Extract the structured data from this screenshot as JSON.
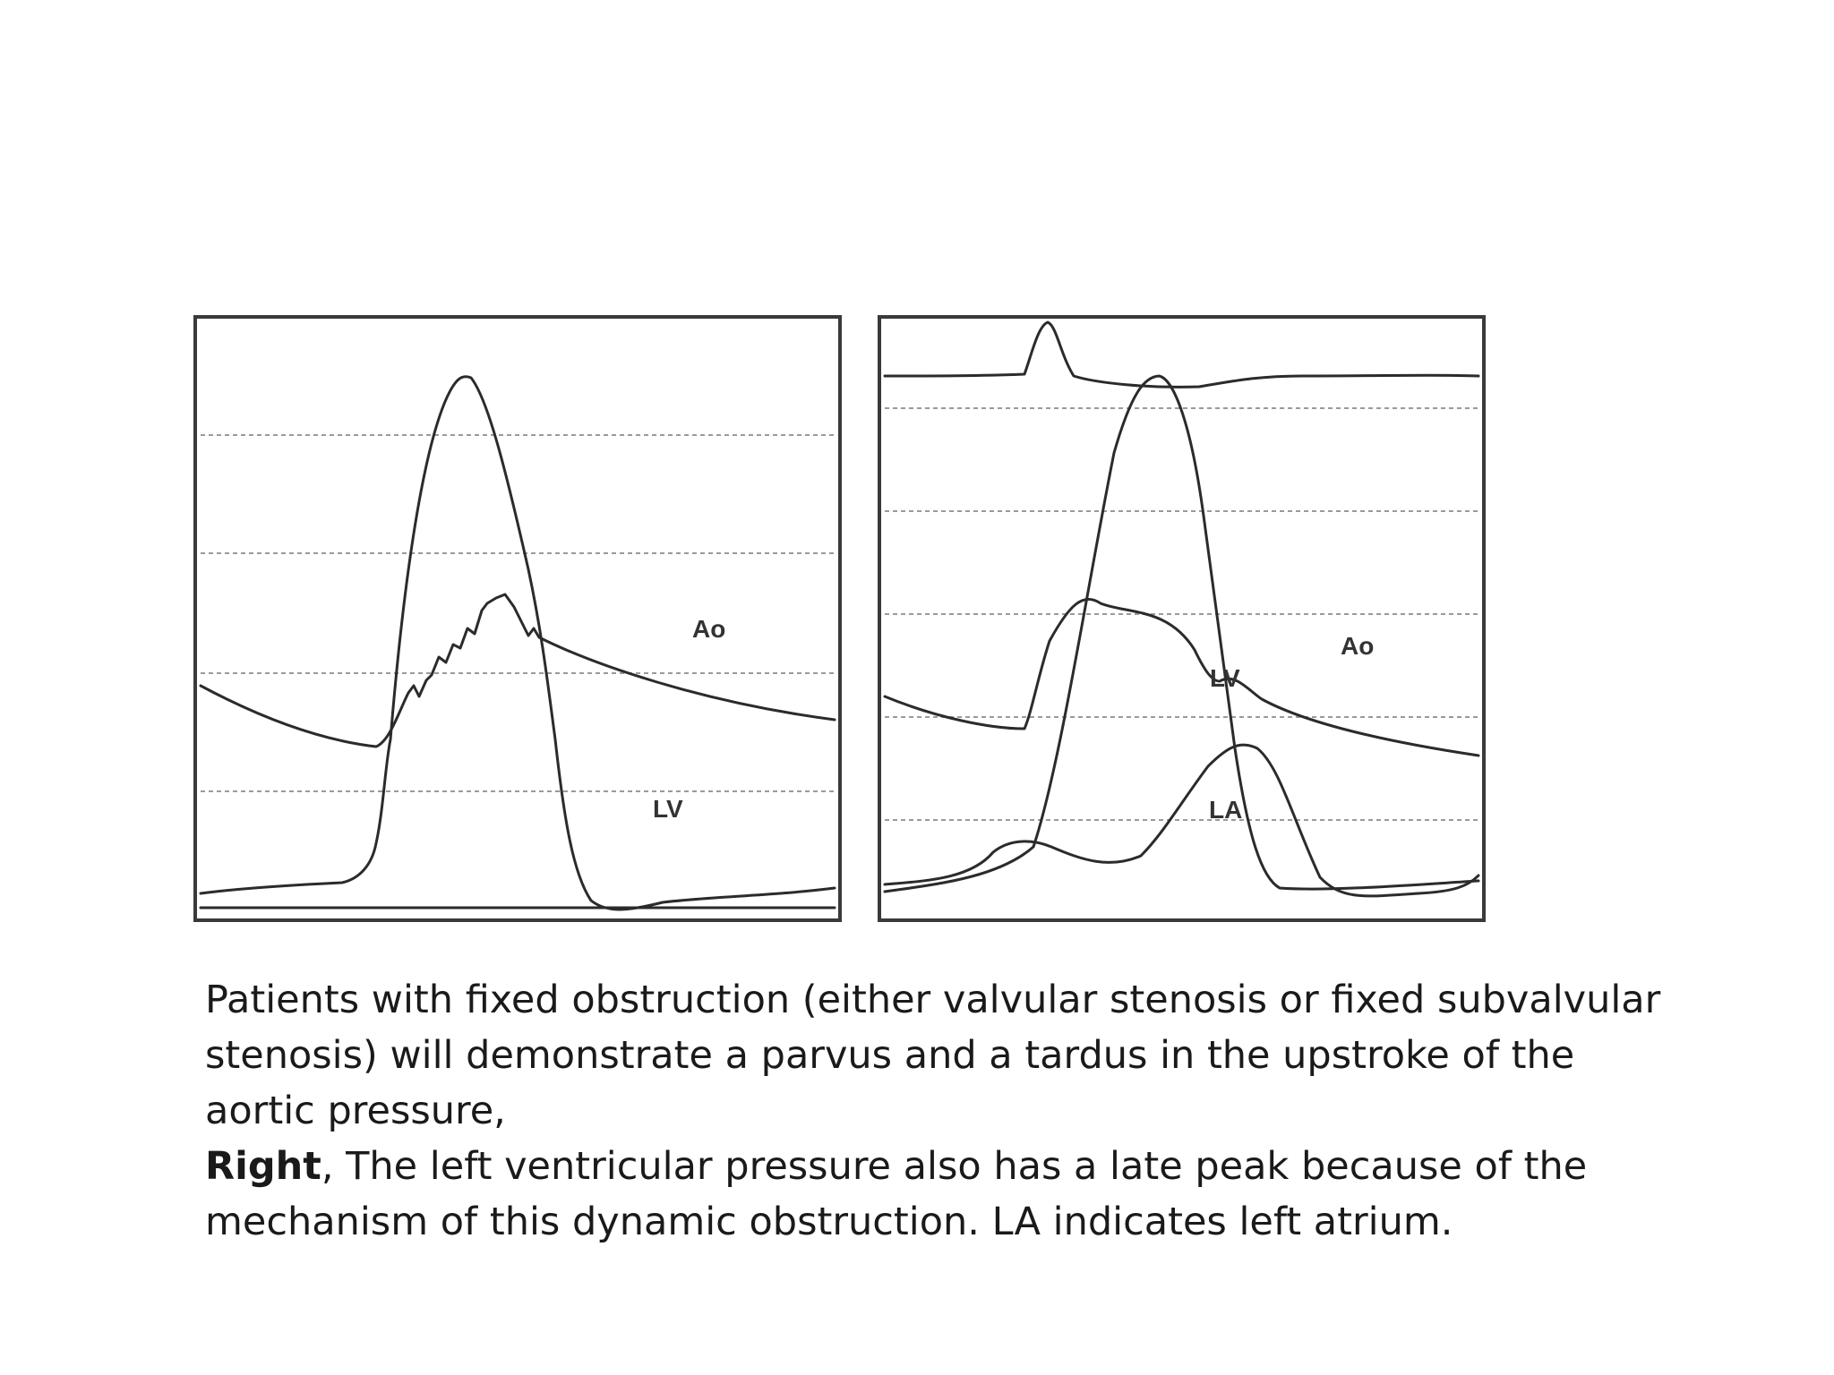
{
  "left_panel": {
    "labels": {
      "ao": "Ao",
      "lv": "LV"
    }
  },
  "right_panel": {
    "labels": {
      "ao": "Ao",
      "lv": "LV",
      "la": "LA"
    }
  },
  "caption": {
    "paragraph1": "Patients with fixed obstruction (either valvular stenosis or fixed subvalvular stenosis) will demonstrate a parvus and a tardus in the upstroke of the aortic pressure,",
    "paragraph2_bold": "Right",
    "paragraph2_rest": ", The left ventricular pressure also has a late peak because of the mechanism of this dynamic obstruction. LA indicates left atrium."
  },
  "colors": {
    "trace": "#2b2b2b",
    "frame": "#3a3a3a",
    "gridline": "#9a9a9a",
    "text": "#1a1a1a"
  }
}
